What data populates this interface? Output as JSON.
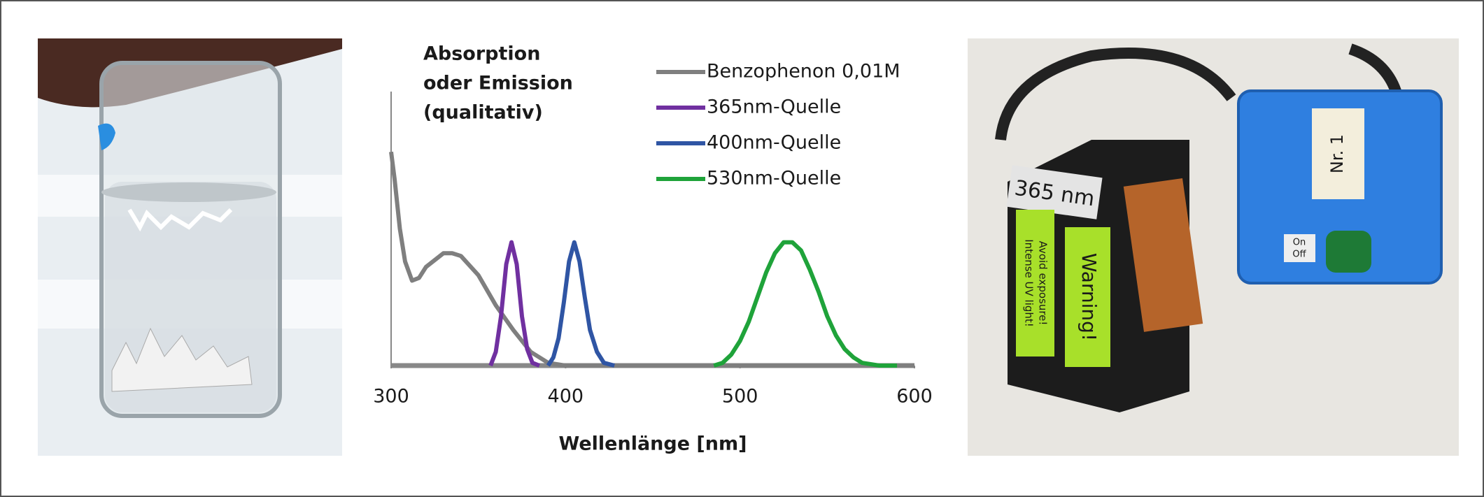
{
  "chart_data": {
    "type": "line",
    "y_label": [
      "Absorption",
      "oder Emission",
      "(qualitativ)"
    ],
    "x_label": "Wellenlänge [nm]",
    "xlim": [
      300,
      600
    ],
    "xticks": [
      300,
      400,
      500,
      600
    ],
    "ylim": [
      0,
      1
    ],
    "legend": "top-right",
    "series": [
      {
        "name": "Benzophenon 0,01M",
        "color": "#7f7f7f",
        "x": [
          300,
          302,
          305,
          308,
          312,
          316,
          320,
          330,
          335,
          340,
          350,
          360,
          370,
          380,
          390,
          400,
          600
        ],
        "values": [
          0.78,
          0.68,
          0.5,
          0.38,
          0.31,
          0.32,
          0.36,
          0.41,
          0.41,
          0.4,
          0.33,
          0.22,
          0.13,
          0.05,
          0.01,
          0,
          0
        ]
      },
      {
        "name": "365nm-Quelle",
        "color": "#7030a0",
        "x": [
          357,
          360,
          363,
          366,
          369,
          372,
          375,
          378,
          381,
          385
        ],
        "values": [
          0,
          0.05,
          0.18,
          0.37,
          0.45,
          0.37,
          0.18,
          0.06,
          0.01,
          0
        ]
      },
      {
        "name": "400nm-Quelle",
        "color": "#2f55a4",
        "x": [
          390,
          393,
          396,
          399,
          402,
          405,
          408,
          411,
          414,
          418,
          422,
          428
        ],
        "values": [
          0,
          0.03,
          0.1,
          0.23,
          0.38,
          0.45,
          0.38,
          0.25,
          0.13,
          0.05,
          0.01,
          0
        ]
      },
      {
        "name": "530nm-Quelle",
        "color": "#1fa33a",
        "x": [
          485,
          490,
          495,
          500,
          505,
          510,
          515,
          520,
          525,
          530,
          535,
          540,
          545,
          550,
          555,
          560,
          565,
          570,
          580,
          590
        ],
        "values": [
          0,
          0.01,
          0.04,
          0.09,
          0.16,
          0.25,
          0.34,
          0.41,
          0.45,
          0.45,
          0.42,
          0.35,
          0.27,
          0.18,
          0.11,
          0.06,
          0.03,
          0.01,
          0,
          0
        ]
      }
    ]
  },
  "photos": {
    "device_label": "365 nm",
    "warning": "Warning!",
    "caution": [
      "Intense UV light!",
      "Avoid exposure!"
    ],
    "switch": [
      "On",
      "Off"
    ],
    "box_label": "Nr. 1"
  }
}
